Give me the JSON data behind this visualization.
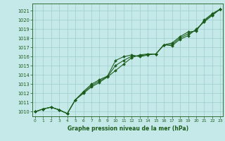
{
  "title": "Graphe pression niveau de la mer (hPa)",
  "xlabel_hours": [
    0,
    1,
    2,
    3,
    4,
    5,
    6,
    7,
    8,
    9,
    10,
    11,
    12,
    13,
    14,
    15,
    16,
    17,
    18,
    19,
    20,
    21,
    22,
    23
  ],
  "ylim": [
    1009.5,
    1021.8
  ],
  "xlim": [
    -0.3,
    23.3
  ],
  "yticks": [
    1010,
    1011,
    1012,
    1013,
    1014,
    1015,
    1016,
    1017,
    1018,
    1019,
    1020,
    1021
  ],
  "bg_color": "#c5e8e8",
  "grid_color": "#9ecece",
  "line_color": "#1a5c1a",
  "marker_color": "#1a5c1a",
  "line1": [
    1010.0,
    1010.3,
    1010.5,
    1010.2,
    1009.8,
    1011.3,
    1012.0,
    1012.7,
    1013.2,
    1013.8,
    1014.5,
    1015.2,
    1015.9,
    1016.2,
    1016.3,
    1016.3,
    1017.3,
    1017.2,
    1017.9,
    1018.3,
    1019.0,
    1019.8,
    1020.5,
    1021.2
  ],
  "line2": [
    1010.0,
    1010.3,
    1010.5,
    1010.2,
    1009.8,
    1011.3,
    1012.2,
    1013.0,
    1013.5,
    1013.9,
    1015.6,
    1016.0,
    1016.2,
    1016.0,
    1016.2,
    1016.3,
    1017.3,
    1017.5,
    1018.2,
    1018.7,
    1018.8,
    1020.0,
    1020.7,
    1021.2
  ],
  "line3": [
    1010.0,
    1010.3,
    1010.5,
    1010.2,
    1009.8,
    1011.3,
    1012.1,
    1012.85,
    1013.35,
    1013.85,
    1015.05,
    1015.6,
    1016.05,
    1016.1,
    1016.25,
    1016.3,
    1017.3,
    1017.35,
    1018.05,
    1018.5,
    1018.9,
    1019.9,
    1020.6,
    1021.2
  ]
}
